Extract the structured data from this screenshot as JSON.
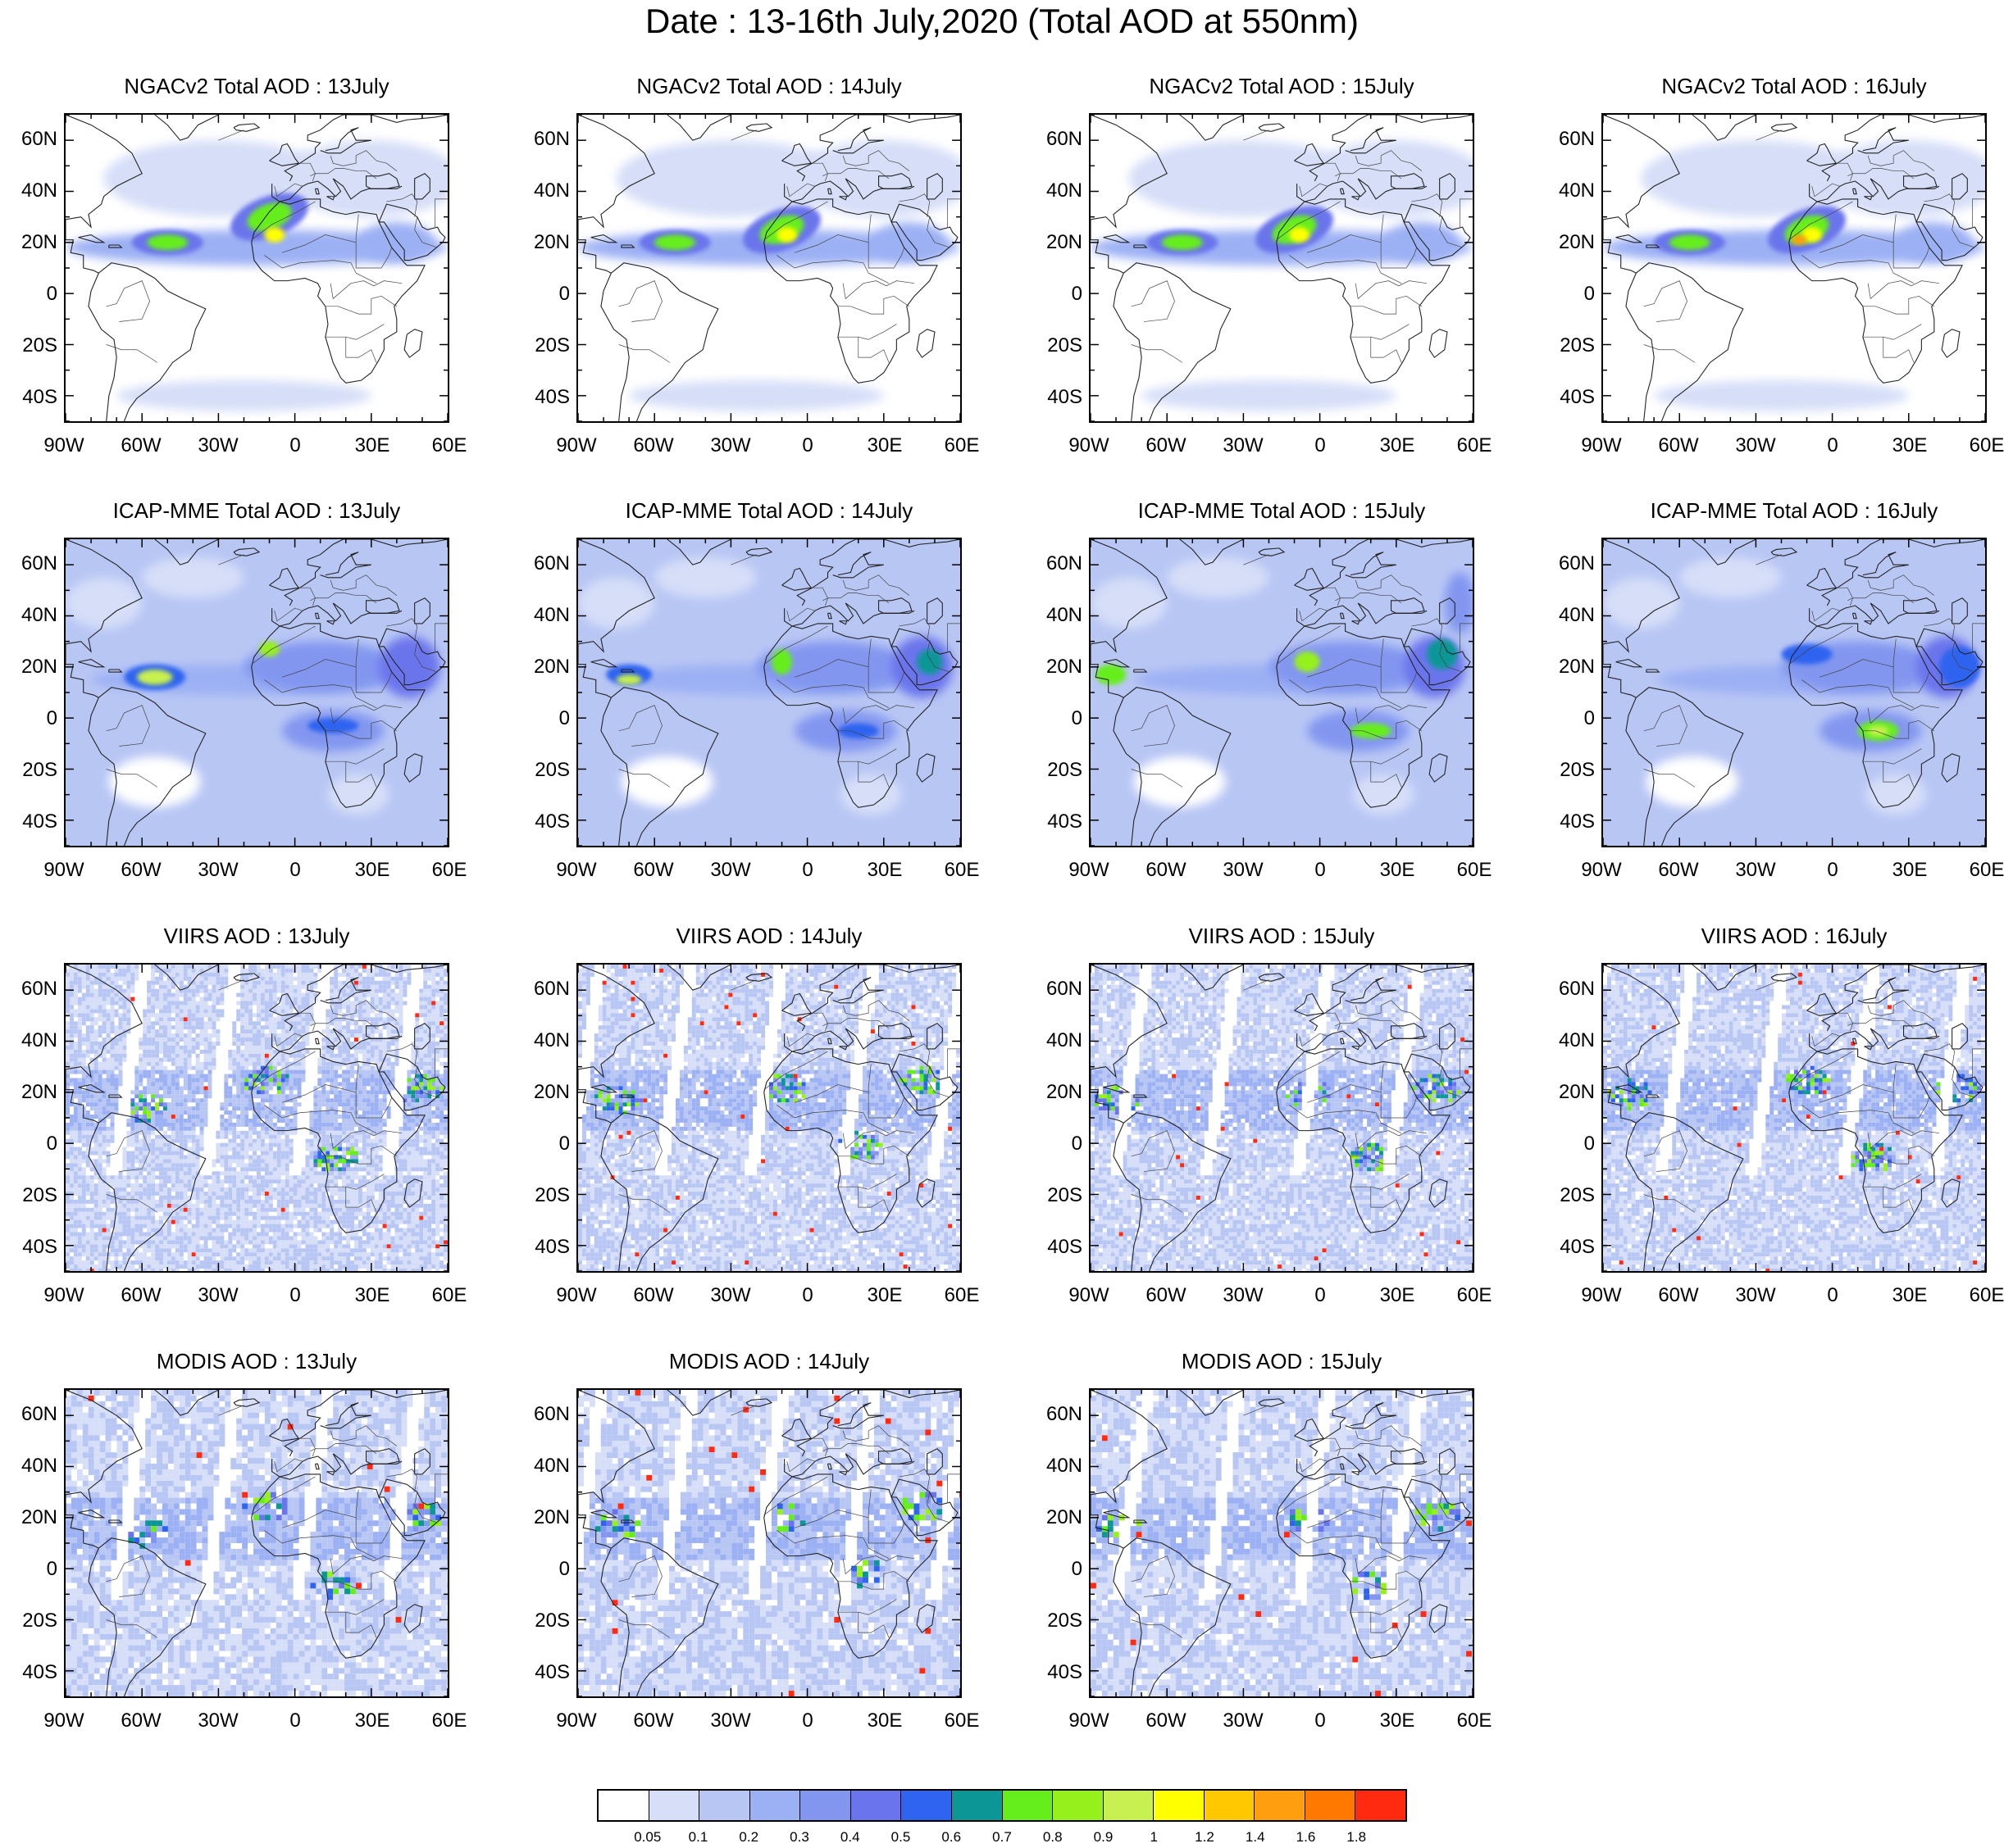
{
  "title": "Date : 13-16th July,2020 (Total AOD at 550nm)",
  "lat_labels": [
    "60N",
    "40N",
    "20N",
    "0",
    "20S",
    "40S"
  ],
  "lon_labels": [
    "90W",
    "60W",
    "30W",
    "0",
    "30E",
    "60E"
  ],
  "rows": [
    {
      "source": "NGACv2",
      "panels": [
        {
          "title": "NGACv2 Total AOD : 13July",
          "day": 13
        },
        {
          "title": "NGACv2 Total AOD : 14July",
          "day": 14
        },
        {
          "title": "NGACv2 Total AOD : 15July",
          "day": 15
        },
        {
          "title": "NGACv2 Total AOD : 16July",
          "day": 16
        }
      ]
    },
    {
      "source": "ICAP-MME",
      "panels": [
        {
          "title": "ICAP-MME Total AOD : 13July",
          "day": 13
        },
        {
          "title": "ICAP-MME Total AOD : 14July",
          "day": 14
        },
        {
          "title": "ICAP-MME Total AOD : 15July",
          "day": 15
        },
        {
          "title": "ICAP-MME Total AOD : 16July",
          "day": 16
        }
      ]
    },
    {
      "source": "VIIRS",
      "panels": [
        {
          "title": "VIIRS AOD : 13July",
          "day": 13
        },
        {
          "title": "VIIRS AOD : 14July",
          "day": 14
        },
        {
          "title": "VIIRS AOD : 15July",
          "day": 15
        },
        {
          "title": "VIIRS AOD : 16July",
          "day": 16
        }
      ]
    },
    {
      "source": "MODIS",
      "panels": [
        {
          "title": "MODIS AOD : 13July",
          "day": 13
        },
        {
          "title": "MODIS AOD : 14July",
          "day": 14
        },
        {
          "title": "MODIS AOD : 15July",
          "day": 15
        }
      ]
    }
  ],
  "colorbar": {
    "labels": [
      "0.05",
      "0.1",
      "0.2",
      "0.3",
      "0.4",
      "0.5",
      "0.6",
      "0.7",
      "0.8",
      "0.9",
      "1",
      "1.2",
      "1.4",
      "1.6",
      "1.8"
    ],
    "colors": [
      "#ffffff",
      "#d6def8",
      "#b8c6f4",
      "#9cb0f4",
      "#8296f0",
      "#6a74ec",
      "#2e64f0",
      "#0c9696",
      "#66ee1c",
      "#96f01c",
      "#c8f050",
      "#ffff00",
      "#ffc800",
      "#ff9f10",
      "#ff7800",
      "#ff2a10"
    ]
  }
}
